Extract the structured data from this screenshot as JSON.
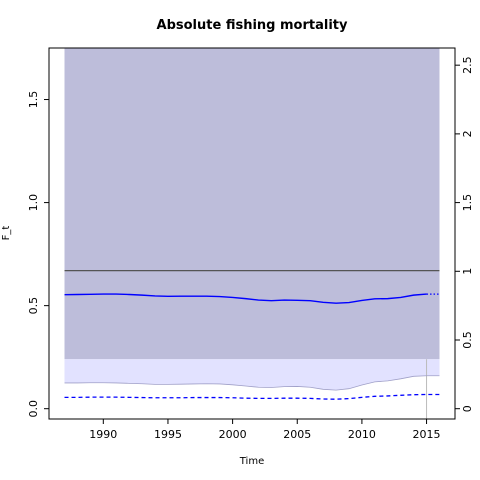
{
  "chart_data": {
    "type": "line",
    "title": "Absolute fishing mortality",
    "xlabel": "Time",
    "ylabel": "F_t",
    "xlim": [
      1985.8,
      2017.2
    ],
    "ylim": [
      -0.05,
      1.75
    ],
    "y2lim": [
      -0.075,
      2.625
    ],
    "x_ticks": [
      1990,
      1995,
      2000,
      2005,
      2010,
      2015
    ],
    "y_ticks": [
      0.0,
      0.5,
      1.0,
      1.5
    ],
    "y_tick_labels": [
      "0.0",
      "0.5",
      "1.0",
      "1.5"
    ],
    "y2_ticks": [
      0,
      0.5,
      1,
      1.5,
      2,
      2.5
    ],
    "y2_tick_labels": [
      "0",
      "0.5",
      "1",
      "1.5",
      "2",
      "2.5"
    ],
    "grid": false,
    "colors": {
      "f_line": "#0000ff",
      "ci_band": "#e2e2ff",
      "ci_band_edge": "#a0a0c8",
      "upper_band": "#bdbdda",
      "ref_line": "#555555",
      "vline": "#bbbbbb"
    },
    "upper_band": {
      "x_start": 1987,
      "x_end": 2016,
      "lower": 0.24,
      "upper": 1.75
    },
    "reference_line": {
      "y": 0.67
    },
    "vertical_line": {
      "x": 2015
    },
    "series": [
      {
        "role": "estimate",
        "style": "solid",
        "x": [
          1987,
          1988,
          1989,
          1990,
          1991,
          1992,
          1993,
          1994,
          1995,
          1996,
          1997,
          1998,
          1999,
          2000,
          2001,
          2002,
          2003,
          2004,
          2005,
          2006,
          2007,
          2008,
          2009,
          2010,
          2011,
          2012,
          2013,
          2014,
          2015
        ],
        "y": [
          0.553,
          0.554,
          0.555,
          0.556,
          0.556,
          0.554,
          0.551,
          0.547,
          0.545,
          0.546,
          0.546,
          0.546,
          0.544,
          0.54,
          0.534,
          0.527,
          0.524,
          0.527,
          0.526,
          0.524,
          0.516,
          0.512,
          0.515,
          0.525,
          0.533,
          0.534,
          0.54,
          0.551,
          0.556
        ]
      },
      {
        "role": "forecast",
        "style": "dotted",
        "x": [
          2015,
          2016
        ],
        "y": [
          0.556,
          0.556
        ]
      },
      {
        "role": "ci_upper",
        "style": "thin",
        "x": [
          1987,
          1988,
          1989,
          1990,
          1991,
          1992,
          1993,
          1994,
          1995,
          1996,
          1997,
          1998,
          1999,
          2000,
          2001,
          2002,
          2003,
          2004,
          2005,
          2006,
          2007,
          2008,
          2009,
          2010,
          2011,
          2012,
          2013,
          2014,
          2015,
          2016
        ],
        "y": [
          0.125,
          0.125,
          0.126,
          0.126,
          0.125,
          0.123,
          0.121,
          0.118,
          0.118,
          0.119,
          0.12,
          0.121,
          0.12,
          0.116,
          0.11,
          0.104,
          0.103,
          0.107,
          0.108,
          0.104,
          0.094,
          0.09,
          0.097,
          0.115,
          0.13,
          0.135,
          0.145,
          0.157,
          0.16,
          0.16
        ]
      },
      {
        "role": "ci_lower",
        "style": "dashed",
        "x": [
          1987,
          1988,
          1989,
          1990,
          1991,
          1992,
          1993,
          1994,
          1995,
          1996,
          1997,
          1998,
          1999,
          2000,
          2001,
          2002,
          2003,
          2004,
          2005,
          2006,
          2007,
          2008,
          2009,
          2010,
          2011,
          2012,
          2013,
          2014,
          2015,
          2016
        ],
        "y": [
          0.055,
          0.055,
          0.056,
          0.056,
          0.056,
          0.055,
          0.054,
          0.053,
          0.053,
          0.053,
          0.054,
          0.054,
          0.054,
          0.053,
          0.051,
          0.05,
          0.05,
          0.051,
          0.051,
          0.05,
          0.047,
          0.046,
          0.049,
          0.055,
          0.06,
          0.062,
          0.065,
          0.068,
          0.069,
          0.069
        ]
      }
    ]
  }
}
